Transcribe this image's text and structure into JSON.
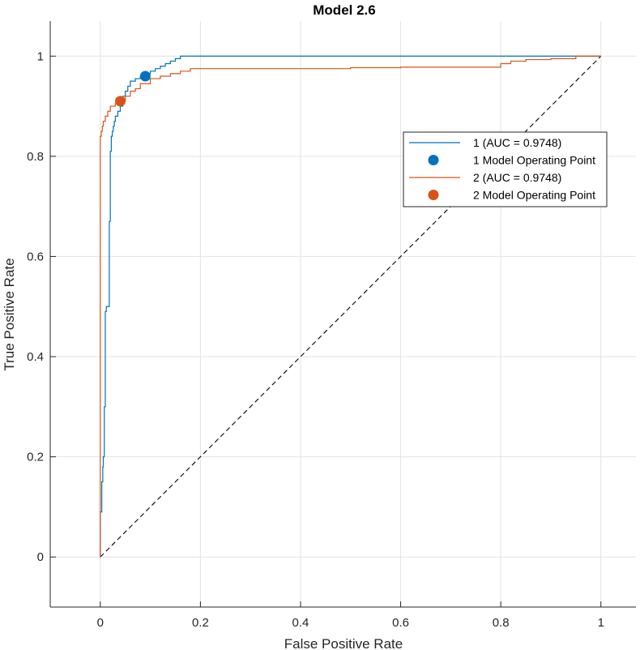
{
  "chart_data": {
    "type": "line",
    "title": "Model 2.6",
    "xlabel": "False Positive Rate",
    "ylabel": "True Positive Rate",
    "xlim": [
      -0.1,
      1.07
    ],
    "ylim": [
      -0.1,
      1.07
    ],
    "xticks": [
      0,
      0.2,
      0.4,
      0.6,
      0.8,
      1
    ],
    "yticks": [
      0,
      0.2,
      0.4,
      0.6,
      0.8,
      1
    ],
    "xtick_labels": [
      "0",
      "0.2",
      "0.4",
      "0.6",
      "0.8",
      "1"
    ],
    "ytick_labels": [
      "0",
      "0.2",
      "0.4",
      "0.6",
      "0.8",
      "1"
    ],
    "grid": true,
    "legend_position": "upper-right",
    "series": [
      {
        "name": "1 (AUC = 0.9748)",
        "color": "#0072BD",
        "x": [
          0,
          0.003,
          0.005,
          0.006,
          0.008,
          0.01,
          0.012,
          0.015,
          0.018,
          0.02,
          0.022,
          0.024,
          0.026,
          0.028,
          0.03,
          0.035,
          0.04,
          0.045,
          0.05,
          0.055,
          0.06,
          0.07,
          0.08,
          0.09,
          0.1,
          0.11,
          0.12,
          0.13,
          0.14,
          0.15,
          0.16,
          0.17,
          0.2,
          0.3,
          0.5,
          0.8,
          1.0
        ],
        "y": [
          0,
          0.09,
          0.15,
          0.18,
          0.2,
          0.3,
          0.49,
          0.5,
          0.5,
          0.67,
          0.81,
          0.84,
          0.85,
          0.86,
          0.87,
          0.88,
          0.89,
          0.9,
          0.92,
          0.93,
          0.94,
          0.95,
          0.955,
          0.96,
          0.965,
          0.97,
          0.975,
          0.98,
          0.985,
          0.99,
          0.995,
          1.0,
          1.0,
          1.0,
          1.0,
          1.0,
          1.0
        ]
      },
      {
        "name": "1 Model Operating Point",
        "color": "#0072BD",
        "marker": "circle",
        "x": [
          0.09
        ],
        "y": [
          0.96
        ]
      },
      {
        "name": "2 (AUC = 0.9748)",
        "color": "#D95319",
        "x": [
          0,
          0.0,
          0.0,
          0.002,
          0.004,
          0.006,
          0.01,
          0.015,
          0.02,
          0.03,
          0.04,
          0.05,
          0.06,
          0.07,
          0.08,
          0.1,
          0.12,
          0.14,
          0.16,
          0.18,
          0.2,
          0.3,
          0.4,
          0.5,
          0.6,
          0.7,
          0.8,
          0.82,
          0.85,
          0.9,
          0.95,
          1.0
        ],
        "y": [
          0,
          0.1,
          0.83,
          0.84,
          0.85,
          0.86,
          0.87,
          0.88,
          0.89,
          0.9,
          0.905,
          0.91,
          0.92,
          0.93,
          0.935,
          0.945,
          0.955,
          0.96,
          0.965,
          0.97,
          0.975,
          0.975,
          0.975,
          0.975,
          0.977,
          0.978,
          0.978,
          0.985,
          0.99,
          0.993,
          0.995,
          1.0
        ]
      },
      {
        "name": "2 Model Operating Point",
        "color": "#D95319",
        "marker": "circle",
        "x": [
          0.04
        ],
        "y": [
          0.91
        ]
      },
      {
        "name": "",
        "color": "#000000",
        "dashed": true,
        "x": [
          0,
          1
        ],
        "y": [
          0,
          1
        ]
      }
    ]
  }
}
